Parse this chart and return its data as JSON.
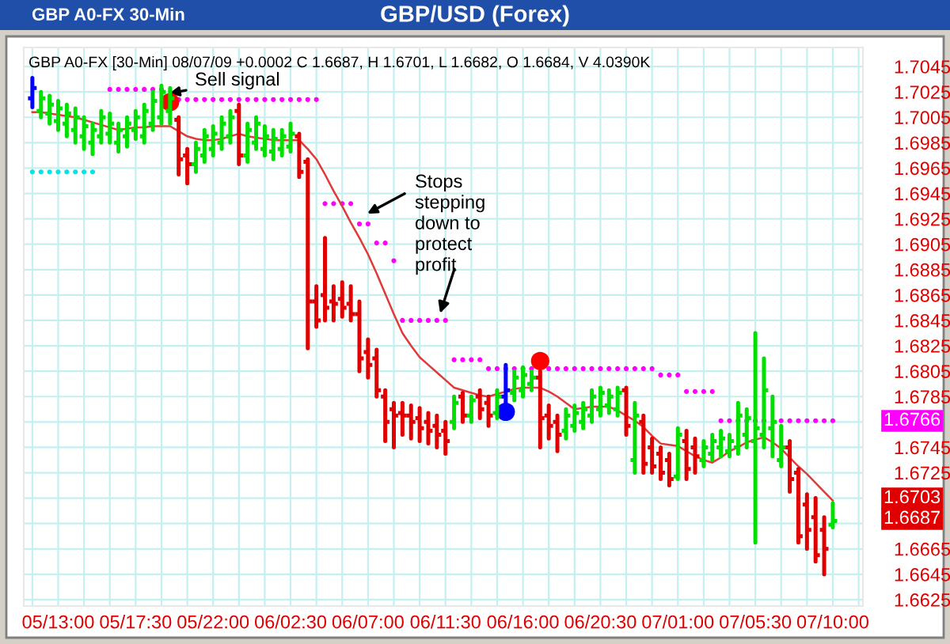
{
  "chart_data": {
    "type": "candlestick",
    "title": "GBP/USD (Forex)",
    "subtitle": "GBP A0-FX 30-Min",
    "categories": [
      null,
      null,
      null,
      "05/13:00",
      null,
      null,
      null,
      null,
      null,
      null,
      null,
      null,
      "05/17:30",
      null,
      null,
      null,
      null,
      null,
      null,
      null,
      null,
      "05/22:00",
      null,
      null,
      null,
      null,
      null,
      null,
      null,
      null,
      "06/02:30",
      null,
      null,
      null,
      null,
      null,
      null,
      null,
      null,
      "06/07:00",
      null,
      null,
      null,
      null,
      null,
      null,
      null,
      null,
      "06/11:30",
      null,
      null,
      null,
      null,
      null,
      null,
      null,
      null,
      "06/16:00",
      null,
      null,
      null,
      null,
      null,
      null,
      null,
      null,
      "06/20:30",
      null,
      null,
      null,
      null,
      null,
      null,
      null,
      null,
      "07/01:00",
      null,
      null,
      null,
      null,
      null,
      null,
      null,
      null,
      "07/05:30",
      null,
      null,
      null,
      null,
      null,
      null,
      null,
      null,
      "07/10:00"
    ],
    "ohlc": [
      [
        1.702,
        1.7036,
        1.7013,
        1.7028
      ],
      [
        1.701,
        1.7025,
        1.7005,
        1.702
      ],
      [
        1.7008,
        1.7022,
        1.7,
        1.7015
      ],
      [
        1.7002,
        1.7018,
        1.6995,
        1.7012
      ],
      [
        1.7,
        1.7015,
        1.699,
        1.7008
      ],
      [
        1.6995,
        1.7012,
        1.6985,
        1.7005
      ],
      [
        1.699,
        1.7005,
        1.698,
        1.6998
      ],
      [
        1.6985,
        1.7,
        1.6976,
        1.6995
      ],
      [
        1.699,
        1.701,
        1.6985,
        1.7005
      ],
      [
        1.6992,
        1.7008,
        1.6985,
        1.7
      ],
      [
        1.6985,
        1.7,
        1.6978,
        1.6995
      ],
      [
        1.699,
        1.7005,
        1.6982,
        1.7
      ],
      [
        1.6995,
        1.701,
        1.6988,
        1.7005
      ],
      [
        1.699,
        1.7015,
        1.6985,
        1.701
      ],
      [
        1.7,
        1.7025,
        1.6995,
        1.7018
      ],
      [
        1.7005,
        1.703,
        1.7,
        1.7025
      ],
      [
        1.701,
        1.7028,
        1.7,
        1.702
      ],
      [
        1.7003,
        1.7005,
        1.696,
        1.6972
      ],
      [
        1.6975,
        1.698,
        1.6953,
        1.6968
      ],
      [
        1.6968,
        1.6985,
        1.6962,
        1.698
      ],
      [
        1.6975,
        1.6995,
        1.697,
        1.699
      ],
      [
        1.698,
        1.6998,
        1.6975,
        1.6992
      ],
      [
        1.6985,
        1.7005,
        1.698,
        1.7
      ],
      [
        1.699,
        1.701,
        1.6985,
        1.7005
      ],
      [
        1.701,
        1.7015,
        1.6968,
        1.6975
      ],
      [
        1.6975,
        1.7,
        1.697,
        1.6995
      ],
      [
        1.6985,
        1.7005,
        1.698,
        1.7
      ],
      [
        1.698,
        1.6998,
        1.6975,
        1.699
      ],
      [
        1.6978,
        1.6995,
        1.6972,
        1.6988
      ],
      [
        1.698,
        1.6995,
        1.6975,
        1.699
      ],
      [
        1.6982,
        1.7,
        1.6978,
        1.6992
      ],
      [
        1.699,
        1.6992,
        1.6958,
        1.6962
      ],
      [
        1.697,
        1.6972,
        1.6823,
        1.686
      ],
      [
        1.686,
        1.6872,
        1.684,
        1.6845
      ],
      [
        1.6865,
        1.691,
        1.6845,
        1.6855
      ],
      [
        1.686,
        1.6872,
        1.6845,
        1.6858
      ],
      [
        1.6862,
        1.6875,
        1.6848,
        1.6855
      ],
      [
        1.6858,
        1.6872,
        1.6845,
        1.685
      ],
      [
        1.685,
        1.686,
        1.6805,
        1.6815
      ],
      [
        1.682,
        1.683,
        1.68,
        1.681
      ],
      [
        1.6815,
        1.6822,
        1.6785,
        1.679
      ],
      [
        1.6785,
        1.679,
        1.675,
        1.6765
      ],
      [
        1.6775,
        1.678,
        1.6745,
        1.677
      ],
      [
        1.6772,
        1.678,
        1.6755,
        1.677
      ],
      [
        1.677,
        1.6778,
        1.6752,
        1.6765
      ],
      [
        1.6768,
        1.6776,
        1.675,
        1.676
      ],
      [
        1.6765,
        1.6772,
        1.6748,
        1.6758
      ],
      [
        1.6762,
        1.677,
        1.6745,
        1.6755
      ],
      [
        1.6758,
        1.6765,
        1.674,
        1.675
      ],
      [
        1.6765,
        1.6785,
        1.676,
        1.678
      ],
      [
        1.6785,
        1.6788,
        1.6765,
        1.677
      ],
      [
        1.677,
        1.6785,
        1.6765,
        1.6782
      ],
      [
        1.6785,
        1.679,
        1.6768,
        1.6775
      ],
      [
        1.678,
        1.6785,
        1.6762,
        1.677
      ],
      [
        1.6772,
        1.679,
        1.6768,
        1.6785
      ],
      [
        1.6785,
        1.681,
        1.6775,
        1.679
      ],
      [
        1.6788,
        1.6805,
        1.6782,
        1.68
      ],
      [
        1.679,
        1.6808,
        1.6785,
        1.6802
      ],
      [
        1.6795,
        1.6805,
        1.679,
        1.68
      ],
      [
        1.68,
        1.6805,
        1.6745,
        1.6768
      ],
      [
        1.677,
        1.6778,
        1.6752,
        1.6762
      ],
      [
        1.6765,
        1.677,
        1.6742,
        1.6755
      ],
      [
        1.6758,
        1.6775,
        1.6752,
        1.677
      ],
      [
        1.6762,
        1.6778,
        1.6758,
        1.6772
      ],
      [
        1.6765,
        1.678,
        1.676,
        1.6775
      ],
      [
        1.677,
        1.679,
        1.6765,
        1.6785
      ],
      [
        1.6775,
        1.6792,
        1.677,
        1.6788
      ],
      [
        1.6778,
        1.679,
        1.6772,
        1.6785
      ],
      [
        1.6775,
        1.6792,
        1.677,
        1.6788
      ],
      [
        1.679,
        1.6792,
        1.6755,
        1.6762
      ],
      [
        1.6735,
        1.678,
        1.6725,
        1.677
      ],
      [
        1.6765,
        1.677,
        1.6725,
        1.6732
      ],
      [
        1.6745,
        1.6752,
        1.6725,
        1.673
      ],
      [
        1.674,
        1.6745,
        1.672,
        1.6725
      ],
      [
        1.6735,
        1.674,
        1.6715,
        1.672
      ],
      [
        1.6722,
        1.676,
        1.672,
        1.6755
      ],
      [
        1.675,
        1.6758,
        1.672,
        1.6728
      ],
      [
        1.6745,
        1.6752,
        1.6725,
        1.6738
      ],
      [
        1.6735,
        1.675,
        1.673,
        1.6745
      ],
      [
        1.674,
        1.6755,
        1.6735,
        1.675
      ],
      [
        1.6745,
        1.6758,
        1.6738,
        1.6752
      ],
      [
        1.6742,
        1.6755,
        1.6738,
        1.675
      ],
      [
        1.6745,
        1.678,
        1.674,
        1.677
      ],
      [
        1.6755,
        1.6775,
        1.6745,
        1.6768
      ],
      [
        1.675,
        1.6835,
        1.667,
        1.676
      ],
      [
        1.6755,
        1.6815,
        1.6745,
        1.679
      ],
      [
        1.676,
        1.6785,
        1.6738,
        1.6765
      ],
      [
        1.6735,
        1.6762,
        1.673,
        1.6745
      ],
      [
        1.6745,
        1.675,
        1.671,
        1.672
      ],
      [
        1.6725,
        1.6728,
        1.667,
        1.6675
      ],
      [
        1.67,
        1.6708,
        1.6665,
        1.668
      ],
      [
        1.669,
        1.6705,
        1.6655,
        1.666
      ],
      [
        1.668,
        1.669,
        1.6645,
        1.6665
      ],
      [
        1.6684,
        1.6701,
        1.6682,
        1.6687
      ]
    ],
    "colors": [
      "#0000ff",
      "#00e000",
      "#00e000",
      "#00e000",
      "#00e000",
      "#00e000",
      "#00e000",
      "#00e000",
      "#00e000",
      "#00e000",
      "#00e000",
      "#00e000",
      "#00e000",
      "#00e000",
      "#00e000",
      "#00e000",
      "#00e000",
      "#e00000",
      "#e00000",
      "#00e000",
      "#00e000",
      "#00e000",
      "#00e000",
      "#00e000",
      "#e00000",
      "#00e000",
      "#00e000",
      "#00e000",
      "#00e000",
      "#00e000",
      "#00e000",
      "#e00000",
      "#e00000",
      "#e00000",
      "#e00000",
      "#e00000",
      "#e00000",
      "#e00000",
      "#e00000",
      "#e00000",
      "#e00000",
      "#e00000",
      "#e00000",
      "#e00000",
      "#e00000",
      "#e00000",
      "#e00000",
      "#e00000",
      "#e00000",
      "#00e000",
      "#e00000",
      "#00e000",
      "#e00000",
      "#e00000",
      "#00e000",
      "#0000ff",
      "#00e000",
      "#00e000",
      "#00e000",
      "#e00000",
      "#e00000",
      "#e00000",
      "#00e000",
      "#00e000",
      "#00e000",
      "#00e000",
      "#00e000",
      "#00e000",
      "#00e000",
      "#e00000",
      "#00e000",
      "#e00000",
      "#e00000",
      "#e00000",
      "#e00000",
      "#00e000",
      "#e00000",
      "#e00000",
      "#00e000",
      "#00e000",
      "#00e000",
      "#00e000",
      "#00e000",
      "#00e000",
      "#00e000",
      "#00e000",
      "#00e000",
      "#00e000",
      "#e00000",
      "#e00000",
      "#e00000",
      "#e00000",
      "#e00000",
      "#00e000"
    ],
    "series": [
      {
        "type": "line",
        "color": "#e03a3a",
        "values": [
          1.7009,
          1.7009,
          1.7008,
          1.7007,
          1.7006,
          1.7005,
          1.7003,
          1.7001,
          1.6999,
          1.6997,
          1.6995,
          1.6996,
          1.6997,
          1.6997,
          1.6998,
          1.6998,
          1.6998,
          1.6994,
          1.699,
          1.6988,
          1.6987,
          1.6987,
          1.6988,
          1.699,
          1.6992,
          1.699,
          1.6989,
          1.6988,
          1.6987,
          1.6987,
          1.6987,
          1.6987,
          1.698,
          1.6972,
          1.696,
          1.6947,
          1.6935,
          1.6922,
          1.691,
          1.6897,
          1.6882,
          1.6866,
          1.685,
          1.6835,
          1.6825,
          1.6816,
          1.681,
          1.6804,
          1.6798,
          1.6792,
          1.679,
          1.6788,
          1.6786,
          1.6785,
          1.6787,
          1.6789,
          1.6791,
          1.6792,
          1.6792,
          1.6792,
          1.6789,
          1.6785,
          1.678,
          1.6775,
          1.6776,
          1.6777,
          1.6777,
          1.6777,
          1.6774,
          1.677,
          1.6766,
          1.6761,
          1.6754,
          1.6748,
          1.6747,
          1.6746,
          1.6742,
          1.6738,
          1.6735,
          1.6733,
          1.6737,
          1.6742,
          1.6745,
          1.6749,
          1.6751,
          1.6753,
          1.6749,
          1.6744,
          1.6737,
          1.673,
          1.6724,
          1.6717,
          1.671,
          1.6703
        ]
      },
      {
        "type": "scatter",
        "marker": "circle",
        "color": "#00e5e5",
        "values": [
          1.6962,
          1.6962,
          1.6962,
          1.6962,
          1.6962,
          1.6962,
          1.6962,
          1.6962,
          null,
          null,
          null,
          null,
          null,
          null,
          null,
          null,
          null,
          null,
          null,
          null,
          null,
          null,
          null,
          null,
          null,
          null,
          null,
          null,
          null,
          null,
          null,
          null,
          null,
          null,
          null,
          null,
          null,
          null,
          null,
          null,
          null,
          null,
          null,
          null,
          null,
          null,
          null,
          null,
          null,
          null,
          null,
          null,
          null,
          null,
          null,
          null,
          null,
          null,
          null,
          null,
          null,
          null,
          null,
          null,
          null,
          null,
          null,
          null,
          null,
          null,
          null,
          null,
          null,
          null,
          null,
          null,
          null,
          null,
          null,
          null,
          null,
          null,
          null,
          null,
          null,
          null,
          null,
          null,
          null,
          null,
          null,
          null,
          null,
          null
        ]
      },
      {
        "type": "scatter",
        "marker": "circle",
        "color": "#ff00ff",
        "values": [
          null,
          null,
          null,
          null,
          null,
          null,
          null,
          null,
          null,
          1.7027,
          1.7027,
          1.7027,
          1.7027,
          1.7027,
          1.7027,
          1.7027,
          null,
          1.7019,
          1.7019,
          1.7019,
          1.7019,
          1.7019,
          1.7019,
          1.7019,
          1.7019,
          1.7019,
          1.7019,
          1.7019,
          1.7019,
          1.7019,
          1.7019,
          1.7019,
          1.7019,
          1.7019,
          1.6937,
          1.6937,
          1.6937,
          1.6937,
          1.6921,
          1.6921,
          1.6906,
          1.6906,
          1.6892,
          1.6845,
          1.6845,
          1.6845,
          1.6845,
          1.6845,
          1.6845,
          1.6814,
          1.6814,
          1.6814,
          1.6814,
          1.6807,
          1.6807,
          1.6807,
          1.6807,
          1.6807,
          1.6807,
          null,
          1.6807,
          1.6807,
          1.6807,
          1.6807,
          1.6807,
          1.6807,
          1.6807,
          1.6807,
          1.6807,
          1.6807,
          1.6807,
          1.6807,
          1.6807,
          1.6802,
          1.6802,
          1.6802,
          1.6789,
          1.6789,
          1.6789,
          1.6789,
          1.6766,
          1.6766,
          1.6766,
          1.6766,
          1.6766,
          1.6766,
          null,
          1.6766,
          1.6766,
          1.6766,
          1.6766,
          1.6766,
          1.6766,
          1.6766
        ]
      },
      {
        "type": "scatter",
        "marker": "circle",
        "color": "#ff0000",
        "values": [
          null,
          null,
          null,
          null,
          null,
          null,
          null,
          null,
          null,
          null,
          null,
          null,
          null,
          null,
          null,
          null,
          1.7017,
          null,
          null,
          null,
          null,
          null,
          null,
          null,
          null,
          null,
          null,
          null,
          null,
          null,
          null,
          null,
          null,
          null,
          null,
          null,
          null,
          null,
          null,
          null,
          null,
          null,
          null,
          null,
          null,
          null,
          null,
          null,
          null,
          null,
          null,
          null,
          null,
          null,
          null,
          null,
          null,
          null,
          null,
          1.6813,
          null,
          null,
          null,
          null,
          null,
          null,
          null,
          null,
          null,
          null,
          null,
          null,
          null,
          null,
          null,
          null,
          null,
          null,
          null,
          null,
          null,
          null,
          null,
          null,
          null,
          null,
          null,
          null,
          null,
          null,
          null,
          null,
          null,
          null
        ]
      },
      {
        "type": "scatter",
        "marker": "circle",
        "color": "#0000ff",
        "values": [
          null,
          null,
          null,
          null,
          null,
          null,
          null,
          null,
          null,
          null,
          null,
          null,
          null,
          null,
          null,
          null,
          null,
          null,
          null,
          null,
          null,
          null,
          null,
          null,
          null,
          null,
          null,
          null,
          null,
          null,
          null,
          null,
          null,
          null,
          null,
          null,
          null,
          null,
          null,
          null,
          null,
          null,
          null,
          null,
          null,
          null,
          null,
          null,
          null,
          null,
          null,
          null,
          null,
          null,
          null,
          1.6773,
          null,
          null,
          null,
          null,
          null,
          null,
          null,
          null,
          null,
          null,
          null,
          null,
          null,
          null,
          null,
          null,
          null,
          null,
          null,
          null,
          null,
          null,
          null,
          null,
          null,
          null,
          null,
          null,
          null,
          null,
          null,
          null,
          null,
          null,
          null,
          null,
          null,
          null
        ]
      }
    ],
    "ylim": [
      1.662,
      1.706
    ],
    "yticks": [
      1.7045,
      1.7025,
      1.7005,
      1.6985,
      1.6965,
      1.6945,
      1.6925,
      1.6905,
      1.6885,
      1.6865,
      1.6845,
      1.6825,
      1.6805,
      1.6785,
      {
        "value": 1.6765,
        "label": null
      },
      1.6745,
      1.6725,
      {
        "value": 1.6705,
        "label": null
      },
      {
        "value": 1.6685,
        "label": null
      },
      1.6665,
      1.6645,
      1.6625
    ],
    "grid": true,
    "annotations": [
      "GBP A0-FX [30-Min] 08/07/09 +0.0002 C 1.6687, H 1.6701, L 1.6682, O 1.6684, V 4.0390K",
      "Sell signal",
      "Stops\nstepping\ndown to\nprotect\nprofit",
      "1.6766",
      "1.6703",
      "1.6687"
    ]
  }
}
